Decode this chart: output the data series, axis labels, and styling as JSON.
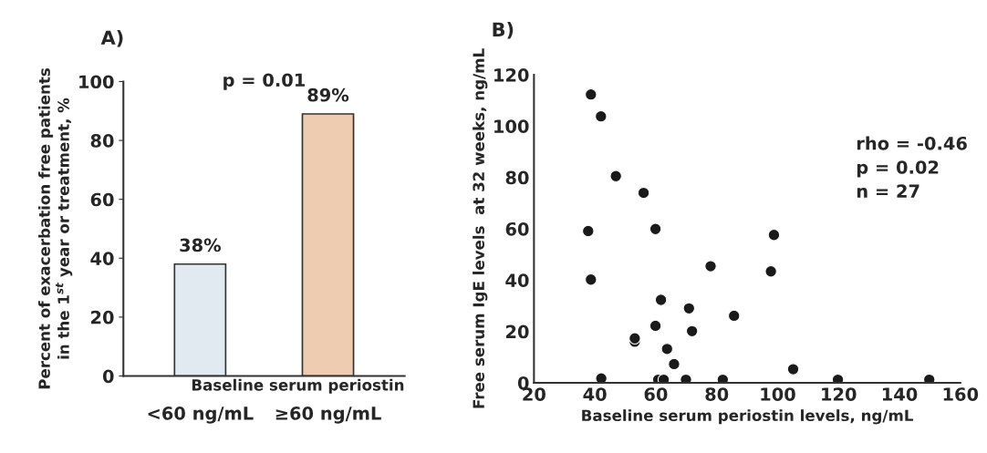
{
  "chart_data": [
    {
      "type": "bar",
      "title": "A)",
      "xlabel": "Baseline serum periostin",
      "ylabel": "Percent of exacerbation free patients\nin the 1$^{st}$ year or treatment, %",
      "categories": [
        "<60 ng/mL",
        "≥60 ng/mL"
      ],
      "values": [
        38,
        89
      ],
      "colors": [
        "#deeaf4",
        "#f7cba8"
      ],
      "value_labels": [
        "38%",
        "89%"
      ],
      "annotations": [
        "p = 0.01"
      ],
      "ylim": [
        0,
        100
      ],
      "yticks": [
        0,
        20,
        40,
        60,
        80,
        100
      ],
      "grid": false
    },
    {
      "type": "scatter",
      "title": "B)",
      "xlabel": "Baseline serum periostin levels, ng/mL",
      "ylabel": "Free serum IgE levels  at 32 weeks, ng/mL",
      "x": [
        38.7,
        42.0,
        46.9,
        56.0,
        37.8,
        59.9,
        98.8,
        38.7,
        78.0,
        97.8,
        61.7,
        70.9,
        85.7,
        59.9,
        71.9,
        53.1,
        53.1,
        63.7,
        66.0,
        105.1,
        42.1,
        60.8,
        62.6,
        69.9,
        82.0,
        119.8,
        149.8
      ],
      "values": [
        112.3,
        103.8,
        80.5,
        74.0,
        59.1,
        59.9,
        57.6,
        40.2,
        45.4,
        43.4,
        32.3,
        29.0,
        26.1,
        22.2,
        20.1,
        16.0,
        17.3,
        13.2,
        7.3,
        5.3,
        1.7,
        1.2,
        1.2,
        1.2,
        1.2,
        1.2,
        1.2
      ],
      "color": "#1a1a1a",
      "marker": "circle",
      "annotations": [
        "rho = -0.46",
        "p = 0.02",
        "n = 27"
      ],
      "xlim": [
        20,
        160
      ],
      "xticks": [
        20,
        40,
        60,
        80,
        100,
        120,
        140,
        160
      ],
      "ylim": [
        0,
        120
      ],
      "yticks": [
        0,
        20,
        40,
        60,
        80,
        100,
        120
      ],
      "grid": false
    }
  ]
}
